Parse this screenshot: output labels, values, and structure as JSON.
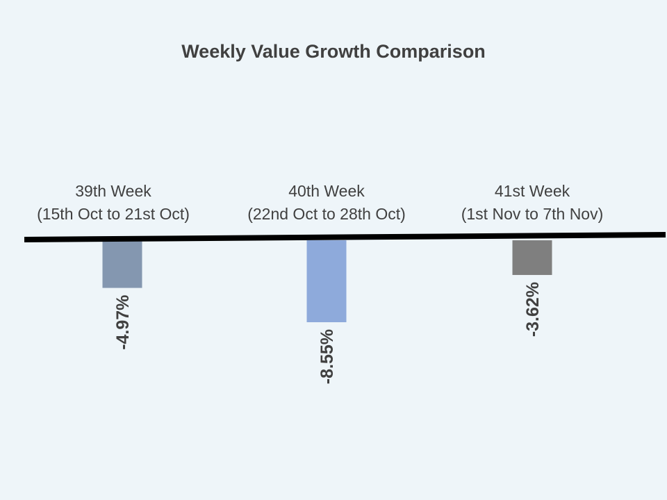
{
  "chart_data": {
    "type": "bar",
    "title": "Weekly Value Growth Comparison",
    "categories": [
      [
        "39th Week",
        "(15th Oct to 21st Oct)"
      ],
      [
        "40th Week",
        "(22nd Oct to 28th Oct)"
      ],
      [
        "41st Week",
        "(1st Nov to 7th Nov)"
      ]
    ],
    "values": [
      -4.97,
      -8.55,
      -3.62
    ],
    "data_labels": [
      "-4.97%",
      "-8.55%",
      "-3.62%"
    ],
    "colors": [
      "#8497b0",
      "#8eaadb",
      "#7f7f7f"
    ],
    "xlabel": "",
    "ylabel": "",
    "ylim": [
      -10,
      0
    ],
    "grid": false,
    "legend": "none"
  }
}
